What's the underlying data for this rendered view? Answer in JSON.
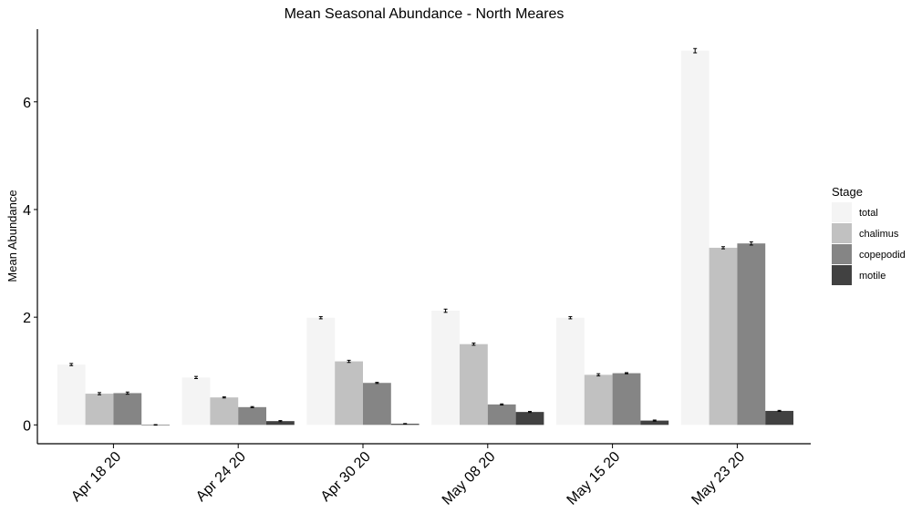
{
  "chart_data": {
    "type": "bar",
    "title": "Mean Seasonal Abundance - North Meares",
    "xlabel": "",
    "ylabel": "Mean Abundance",
    "ylim": [
      -0.35,
      7.35
    ],
    "yticks": [
      0,
      2,
      4,
      6
    ],
    "categories": [
      "Apr 18 20",
      "Apr 24 20",
      "Apr 30 20",
      "May 08 20",
      "May 15 20",
      "May 23 20"
    ],
    "legend": {
      "title": "Stage",
      "position": "right"
    },
    "grid": false,
    "series": [
      {
        "name": "total",
        "color": "#f4f4f4",
        "values": [
          1.12,
          0.88,
          1.99,
          2.12,
          1.99,
          6.95
        ],
        "errors": [
          0.02,
          0.02,
          0.02,
          0.03,
          0.02,
          0.04
        ]
      },
      {
        "name": "chalimus",
        "color": "#c1c1c1",
        "values": [
          0.58,
          0.51,
          1.18,
          1.5,
          0.93,
          3.29
        ],
        "errors": [
          0.02,
          0.01,
          0.02,
          0.02,
          0.02,
          0.02
        ]
      },
      {
        "name": "copepodid",
        "color": "#858585",
        "values": [
          0.59,
          0.33,
          0.78,
          0.38,
          0.96,
          3.37
        ],
        "errors": [
          0.02,
          0.01,
          0.01,
          0.01,
          0.01,
          0.03
        ]
      },
      {
        "name": "motile",
        "color": "#414141",
        "values": [
          0.0,
          0.07,
          0.02,
          0.24,
          0.08,
          0.26
        ],
        "errors": [
          0.005,
          0.01,
          0.005,
          0.01,
          0.01,
          0.01
        ]
      }
    ]
  }
}
